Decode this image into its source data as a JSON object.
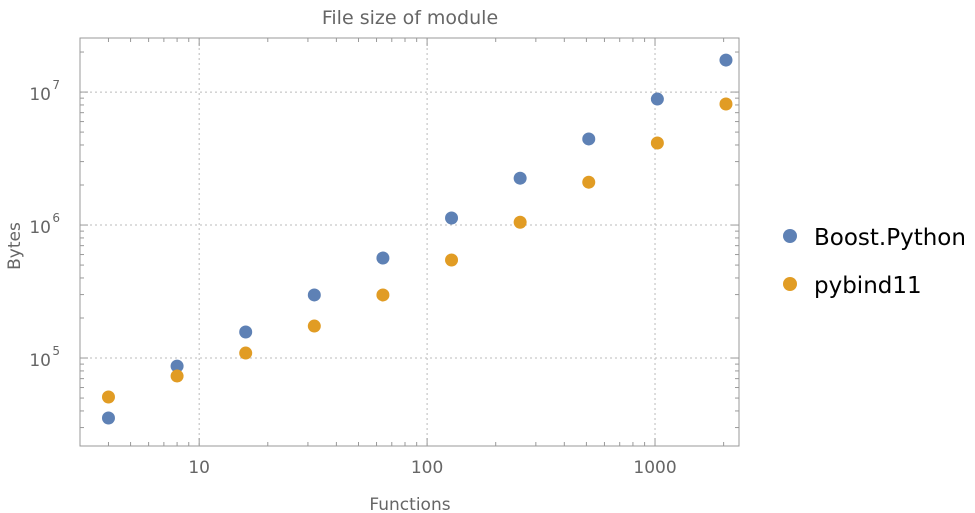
{
  "chart_data": {
    "type": "scatter",
    "title": "File size of module",
    "xlabel": "Functions",
    "ylabel": "Bytes",
    "xscale": "log",
    "yscale": "log",
    "xlim": [
      3.0,
      2336
    ],
    "ylim": [
      21800,
      25500000
    ],
    "grid": true,
    "legend_position": "right",
    "x_ticks": [
      {
        "value": 10,
        "label": "10"
      },
      {
        "value": 100,
        "label": "100"
      },
      {
        "value": 1000,
        "label": "1000"
      }
    ],
    "y_ticks": [
      {
        "value": 100000,
        "base": "10",
        "exp": "5"
      },
      {
        "value": 1000000,
        "base": "10",
        "exp": "6"
      },
      {
        "value": 10000000,
        "base": "10",
        "exp": "7"
      }
    ],
    "x": [
      4,
      8,
      16,
      32,
      64,
      128,
      256,
      512,
      1024,
      2048
    ],
    "series": [
      {
        "name": "Boost.Python",
        "color": "#5e81b5",
        "values": [
          35400,
          87000,
          157000,
          298000,
          565000,
          1130000,
          2250000,
          4440000,
          8860000,
          17400000
        ]
      },
      {
        "name": "pybind11",
        "color": "#e19c24",
        "values": [
          50900,
          73200,
          109000,
          174000,
          298000,
          546000,
          1050000,
          2100000,
          4140000,
          8130000
        ]
      }
    ]
  }
}
